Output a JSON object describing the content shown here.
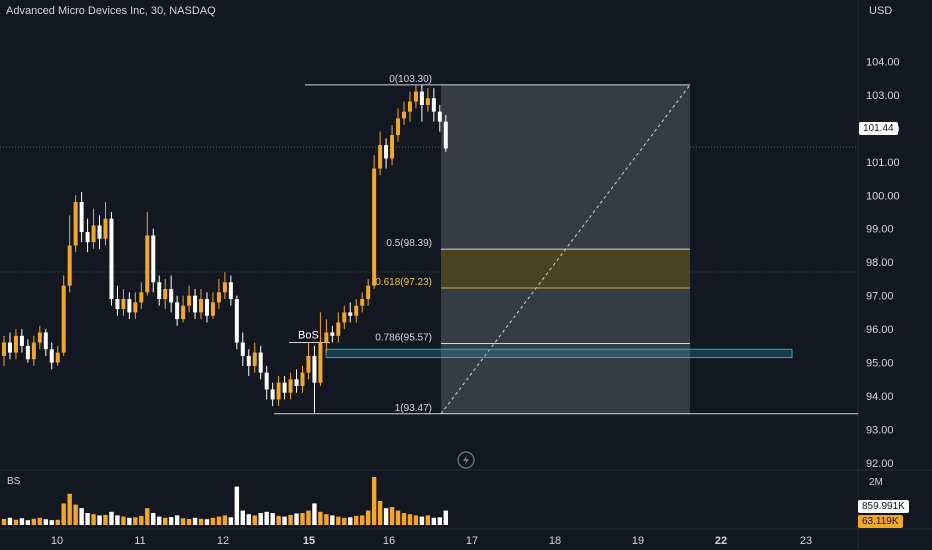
{
  "header": {
    "title": "Advanced Micro Devices Inc, 30, NASDAQ",
    "currency": "USD"
  },
  "price_tag": "101.44",
  "volume_panel": {
    "label": "BS",
    "axis_label": "2M",
    "value1": "859.991K",
    "value2": "63.119K"
  },
  "colors": {
    "background": "#131722",
    "bull": "#f5a623",
    "bear": "#ffffff",
    "box": "#3b3f4a",
    "golden": "#4a4520",
    "blue": "#26a8c9"
  },
  "chart_data": {
    "type": "candlestick",
    "x_ticks": [
      "10",
      "11",
      "12",
      "15",
      "16",
      "17",
      "18",
      "19",
      "22",
      "23"
    ],
    "y_ticks": [
      "104.00",
      "103.00",
      "102.00",
      "101.00",
      "100.00",
      "99.00",
      "98.00",
      "97.00",
      "96.00",
      "95.00",
      "94.00",
      "93.00",
      "92.00"
    ],
    "ylim": [
      92,
      104.7
    ],
    "last_price": 101.44,
    "fib_levels": [
      {
        "label": "0(103.30)",
        "value": 103.3
      },
      {
        "label": "0.5(98.39)",
        "value": 98.39
      },
      {
        "label": "0.618(97.23)",
        "value": 97.23
      },
      {
        "label": "0.786(95.57)",
        "value": 95.57
      },
      {
        "label": "1(93.47)",
        "value": 93.47
      }
    ],
    "annotations": [
      {
        "text": "BoS",
        "value": 95.6
      }
    ],
    "zone": {
      "low": 95.15,
      "high": 95.4
    },
    "candles": [
      [
        95.2,
        95.6,
        95.8,
        94.9
      ],
      [
        95.6,
        95.3,
        95.9,
        95.1
      ],
      [
        95.3,
        95.8,
        96.0,
        95.1
      ],
      [
        95.8,
        95.5,
        96.0,
        95.3
      ],
      [
        95.5,
        95.1,
        95.7,
        95.0
      ],
      [
        95.1,
        95.6,
        95.8,
        94.9
      ],
      [
        95.6,
        95.9,
        96.1,
        95.4
      ],
      [
        95.9,
        95.4,
        96.0,
        95.2
      ],
      [
        95.4,
        95.0,
        95.6,
        94.8
      ],
      [
        95.0,
        95.3,
        95.5,
        94.9
      ],
      [
        95.3,
        97.3,
        97.6,
        95.2
      ],
      [
        97.3,
        98.5,
        99.4,
        97.1
      ],
      [
        98.5,
        99.8,
        100.0,
        98.3
      ],
      [
        99.8,
        98.9,
        100.1,
        98.6
      ],
      [
        98.9,
        98.6,
        99.3,
        98.3
      ],
      [
        98.6,
        99.1,
        99.6,
        98.4
      ],
      [
        99.1,
        98.7,
        99.4,
        98.4
      ],
      [
        98.7,
        99.3,
        99.8,
        98.5
      ],
      [
        99.3,
        96.9,
        99.5,
        96.7
      ],
      [
        96.9,
        96.6,
        97.3,
        96.4
      ],
      [
        96.6,
        96.9,
        97.2,
        96.4
      ],
      [
        96.9,
        96.5,
        97.1,
        96.3
      ],
      [
        96.5,
        96.8,
        97.1,
        96.3
      ],
      [
        96.8,
        97.1,
        97.4,
        96.6
      ],
      [
        97.1,
        98.8,
        99.5,
        97.0
      ],
      [
        98.8,
        97.4,
        99.0,
        97.1
      ],
      [
        97.4,
        96.9,
        97.6,
        96.7
      ],
      [
        96.9,
        97.2,
        97.5,
        96.6
      ],
      [
        97.2,
        96.8,
        97.6,
        96.5
      ],
      [
        96.8,
        96.3,
        97.0,
        96.1
      ],
      [
        96.3,
        96.7,
        97.0,
        96.2
      ],
      [
        96.7,
        97.0,
        97.3,
        96.5
      ],
      [
        97.0,
        96.5,
        97.2,
        96.3
      ],
      [
        96.5,
        96.9,
        97.2,
        96.3
      ],
      [
        96.9,
        96.4,
        97.1,
        96.2
      ],
      [
        96.4,
        96.8,
        97.1,
        96.3
      ],
      [
        96.8,
        97.1,
        97.5,
        96.6
      ],
      [
        97.1,
        97.4,
        97.7,
        96.9
      ],
      [
        97.4,
        96.9,
        97.6,
        96.7
      ],
      [
        96.9,
        95.6,
        97.0,
        95.4
      ],
      [
        95.6,
        95.2,
        95.9,
        94.9
      ],
      [
        95.2,
        94.9,
        95.4,
        94.6
      ],
      [
        94.9,
        95.3,
        95.6,
        94.7
      ],
      [
        95.3,
        94.7,
        95.5,
        94.5
      ],
      [
        94.7,
        94.2,
        94.9,
        93.9
      ],
      [
        94.2,
        93.9,
        94.4,
        93.7
      ],
      [
        93.9,
        94.4,
        94.6,
        93.7
      ],
      [
        94.4,
        94.1,
        94.6,
        93.9
      ],
      [
        94.1,
        94.5,
        94.7,
        93.9
      ],
      [
        94.5,
        94.3,
        94.8,
        94.1
      ],
      [
        94.3,
        94.7,
        94.9,
        94.1
      ],
      [
        94.7,
        95.2,
        95.6,
        94.5
      ],
      [
        95.2,
        94.4,
        95.5,
        93.5
      ],
      [
        94.4,
        95.6,
        96.5,
        94.3
      ],
      [
        95.6,
        95.9,
        96.3,
        95.3
      ],
      [
        95.9,
        95.8,
        96.1,
        95.6
      ],
      [
        95.8,
        96.2,
        96.5,
        95.6
      ],
      [
        96.2,
        96.5,
        96.7,
        96.0
      ],
      [
        96.5,
        96.4,
        96.8,
        96.2
      ],
      [
        96.4,
        96.7,
        96.9,
        96.2
      ],
      [
        96.7,
        96.9,
        97.1,
        96.5
      ],
      [
        96.9,
        97.3,
        97.5,
        96.7
      ],
      [
        97.3,
        100.8,
        101.2,
        97.2
      ],
      [
        100.8,
        101.5,
        101.9,
        100.6
      ],
      [
        101.5,
        101.1,
        101.7,
        100.8
      ],
      [
        101.1,
        101.8,
        102.1,
        100.9
      ],
      [
        101.8,
        102.3,
        102.6,
        101.6
      ],
      [
        102.3,
        102.5,
        102.8,
        102.1
      ],
      [
        102.5,
        102.8,
        103.1,
        102.2
      ],
      [
        102.8,
        103.1,
        103.3,
        102.6
      ],
      [
        103.1,
        102.7,
        103.3,
        102.2
      ],
      [
        102.7,
        102.9,
        103.2,
        102.5
      ],
      [
        102.9,
        102.5,
        103.2,
        102.2
      ],
      [
        102.5,
        102.2,
        102.7,
        101.9
      ],
      [
        102.2,
        101.4,
        102.4,
        101.3
      ]
    ],
    "volume": [
      0.25,
      0.3,
      0.22,
      0.28,
      0.2,
      0.26,
      0.3,
      0.24,
      0.2,
      0.22,
      0.9,
      1.3,
      0.85,
      0.7,
      0.5,
      0.45,
      0.4,
      0.42,
      0.55,
      0.4,
      0.35,
      0.3,
      0.32,
      0.38,
      0.7,
      0.5,
      0.35,
      0.3,
      0.33,
      0.4,
      0.28,
      0.25,
      0.3,
      0.26,
      0.24,
      0.3,
      0.35,
      0.4,
      0.32,
      1.6,
      0.6,
      0.45,
      0.4,
      0.5,
      0.55,
      0.5,
      0.38,
      0.35,
      0.42,
      0.48,
      0.5,
      0.6,
      0.9,
      0.55,
      0.45,
      0.4,
      0.35,
      0.3,
      0.32,
      0.38,
      0.4,
      0.6,
      2.0,
      1.0,
      0.7,
      0.75,
      0.6,
      0.5,
      0.45,
      0.4,
      0.35,
      0.4,
      0.3,
      0.32,
      0.6
    ]
  }
}
